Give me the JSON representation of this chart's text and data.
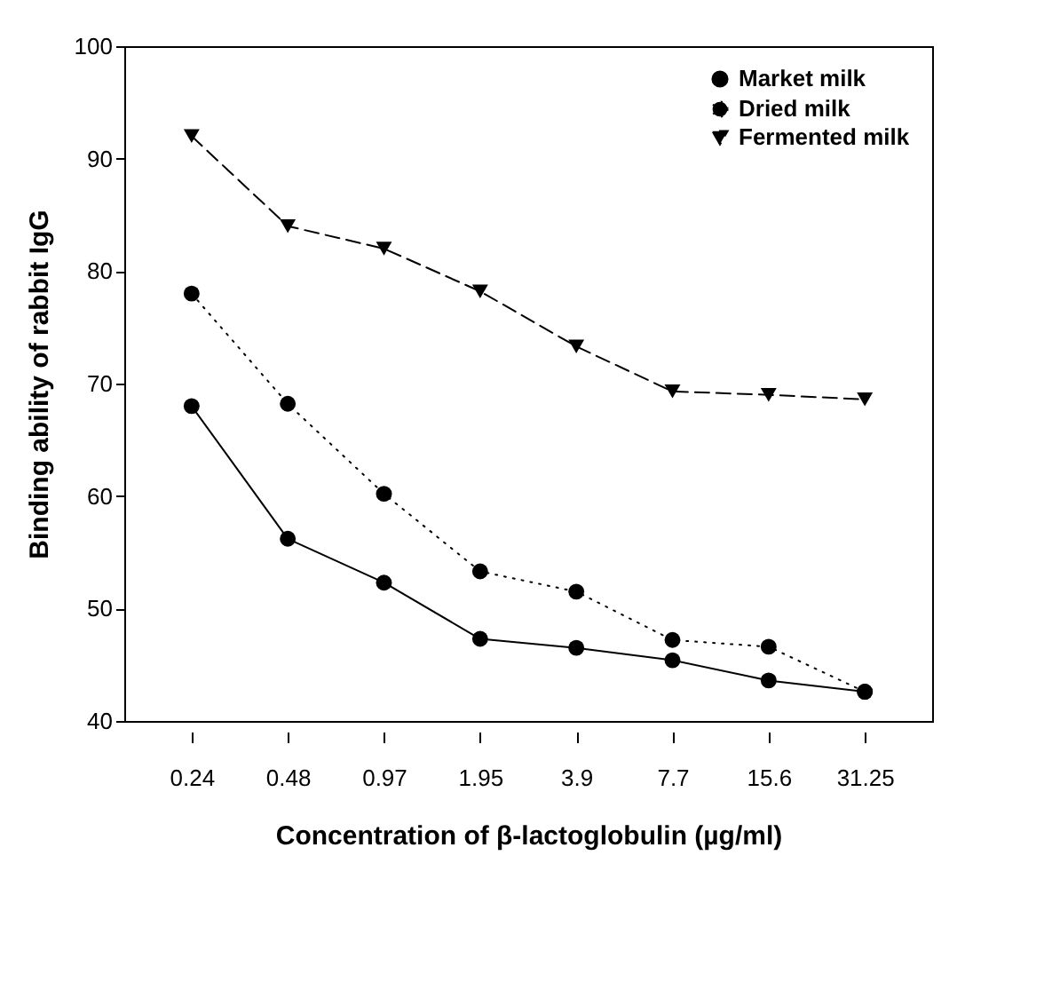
{
  "chart_data": {
    "type": "line",
    "xlabel": "Concentration of β-lactoglobulin (µg/ml)",
    "ylabel": "Binding ability of rabbit IgG",
    "categories": [
      "0.24",
      "0.48",
      "0.97",
      "1.95",
      "3.9",
      "7.7",
      "15.6",
      "31.25"
    ],
    "ylim": [
      40,
      100
    ],
    "yticks": [
      40,
      50,
      60,
      70,
      80,
      90,
      100
    ],
    "grid": false,
    "legend": "top right",
    "series": [
      {
        "name": "Market milk",
        "color": "#000000",
        "marker": "circle",
        "line_style": "solid",
        "values": [
          68,
          56.2,
          52.3,
          47.3,
          46.5,
          45.4,
          43.6,
          42.6
        ]
      },
      {
        "name": "Dried milk",
        "color": "#000000",
        "marker": "circle",
        "line_style": "dotted",
        "values": [
          78,
          68.2,
          60.2,
          53.3,
          51.5,
          47.2,
          46.6,
          42.6
        ]
      },
      {
        "name": "Fermented milk",
        "color": "#000000",
        "marker": "triangle",
        "line_style": "dashed",
        "values": [
          92,
          84,
          82,
          78.2,
          73.3,
          69.3,
          69,
          68.6
        ]
      }
    ]
  }
}
